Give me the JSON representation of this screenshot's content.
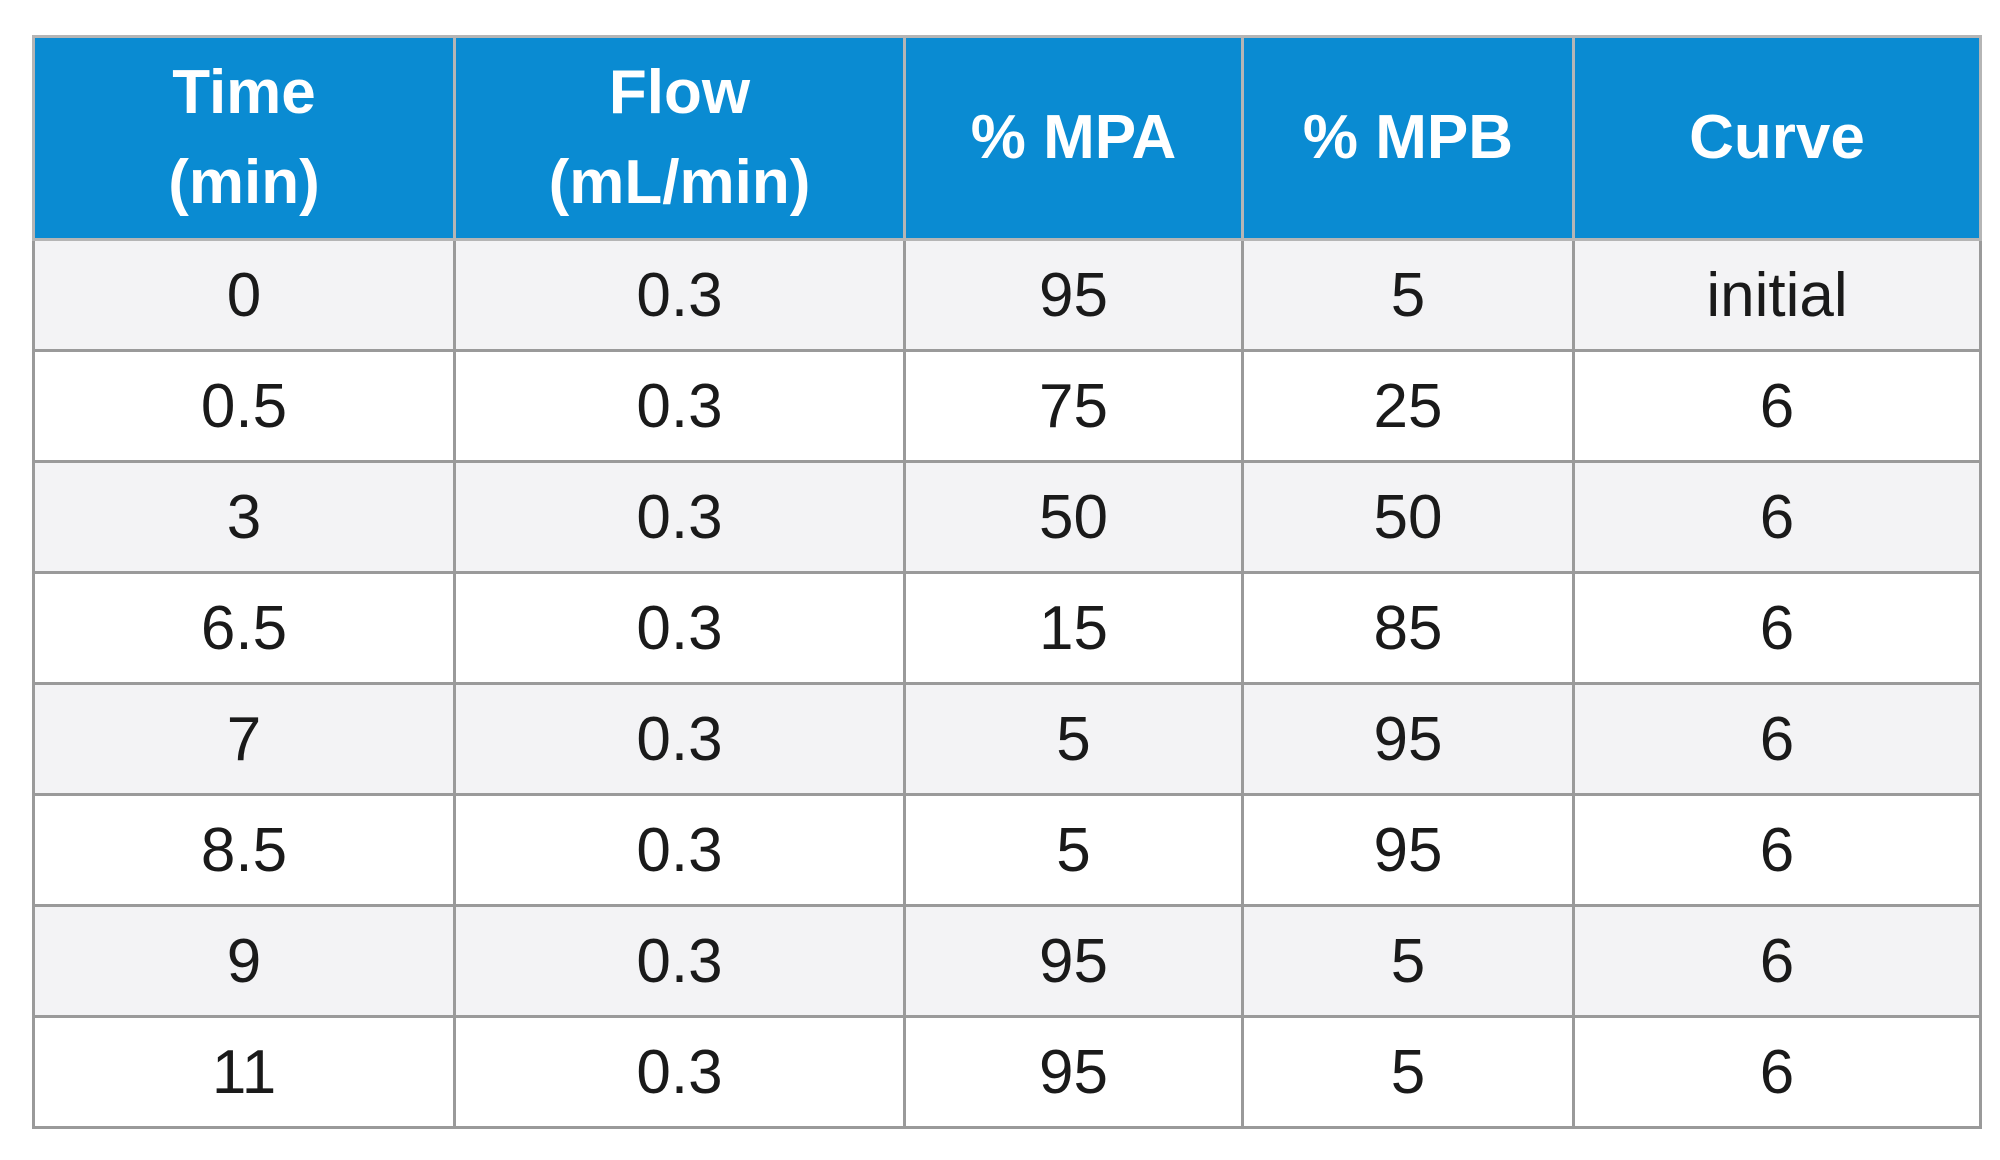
{
  "table": {
    "columns": [
      {
        "line1": "Time",
        "line2": "(min)"
      },
      {
        "line1": "Flow",
        "line2": "(mL/min)"
      },
      {
        "line1": "% MPA",
        "line2": ""
      },
      {
        "line1": "% MPB",
        "line2": ""
      },
      {
        "line1": "Curve",
        "line2": ""
      }
    ],
    "rows": [
      [
        "0",
        "0.3",
        "95",
        "5",
        "initial"
      ],
      [
        "0.5",
        "0.3",
        "75",
        "25",
        "6"
      ],
      [
        "3",
        "0.3",
        "50",
        "50",
        "6"
      ],
      [
        "6.5",
        "0.3",
        "15",
        "85",
        "6"
      ],
      [
        "7",
        "0.3",
        "5",
        "95",
        "6"
      ],
      [
        "8.5",
        "0.3",
        "5",
        "95",
        "6"
      ],
      [
        "9",
        "0.3",
        "95",
        "5",
        "6"
      ],
      [
        "11",
        "0.3",
        "95",
        "5",
        "6"
      ]
    ]
  },
  "colors": {
    "header_bg": "#0a8bd2",
    "header_text": "#ffffff",
    "row_alt_bg": "#f3f3f5",
    "border": "#9a9a9a"
  }
}
